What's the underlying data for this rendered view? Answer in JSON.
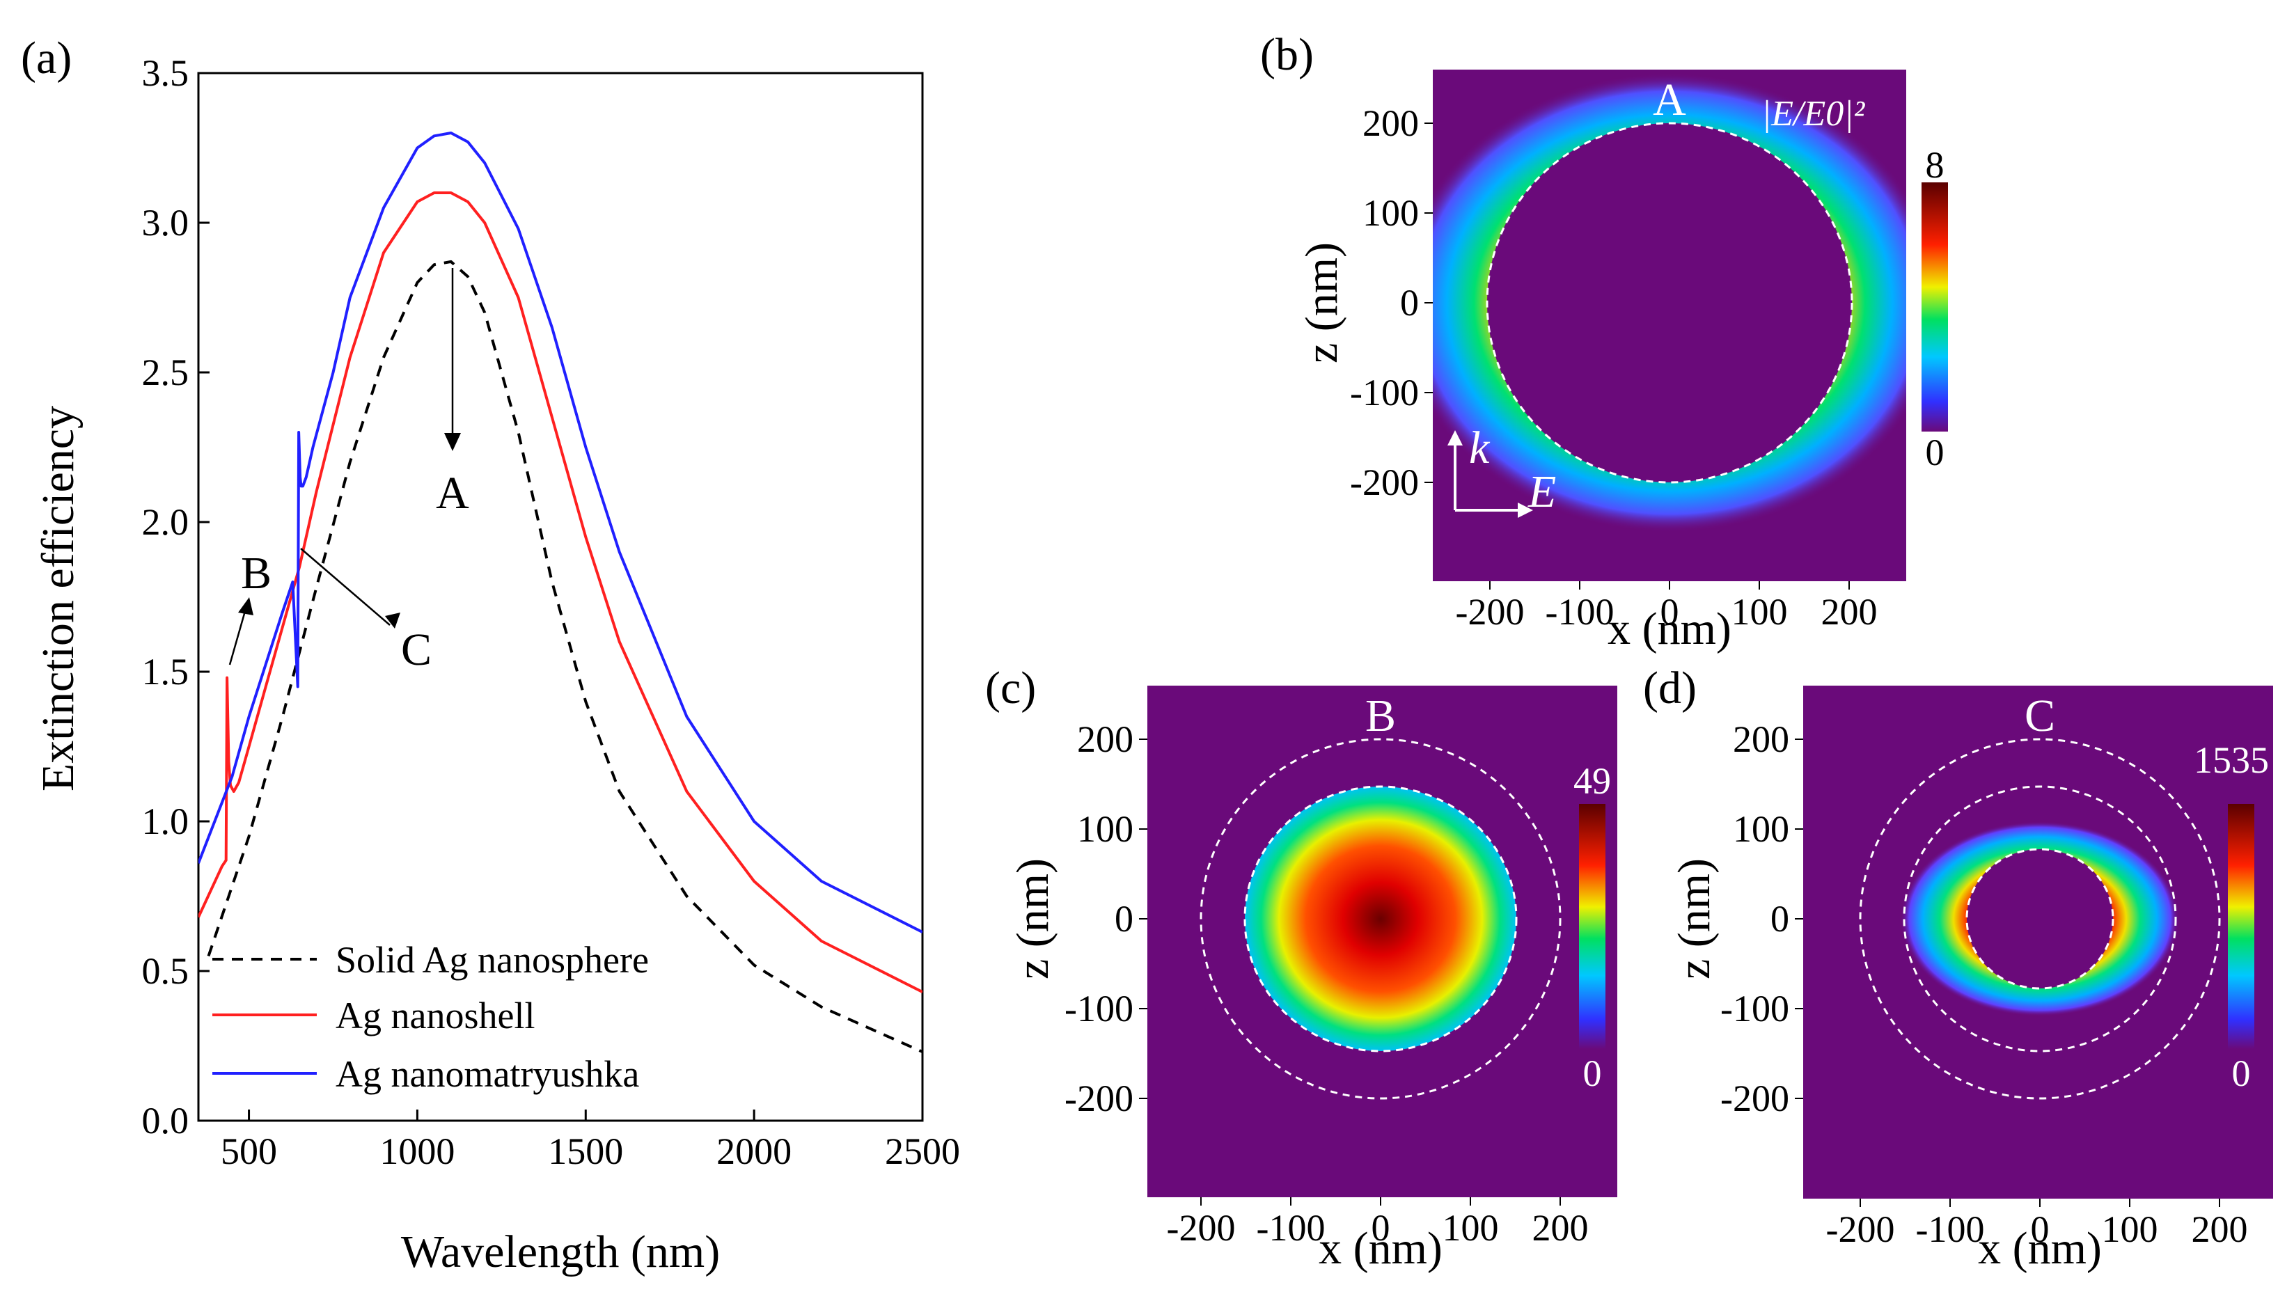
{
  "chart_data": [
    {
      "panel": "(a)",
      "type": "line",
      "xlabel": "Wavelength (nm)",
      "ylabel": "Extinction efficiency",
      "xlim": [
        350,
        2500
      ],
      "ylim": [
        0.0,
        3.5
      ],
      "xticks": [
        "500",
        "1000",
        "1500",
        "2000",
        "2500"
      ],
      "yticks": [
        "0.0",
        "0.5",
        "1.0",
        "1.5",
        "2.0",
        "2.5",
        "3.0",
        "3.5"
      ],
      "legend": "bottom-left",
      "series": [
        {
          "name": "Solid Ag nanosphere",
          "color": "#000000",
          "dash": "dashed",
          "x": [
            380,
            500,
            600,
            700,
            800,
            900,
            1000,
            1050,
            1100,
            1150,
            1200,
            1300,
            1400,
            1500,
            1600,
            1800,
            2000,
            2200,
            2500
          ],
          "y": [
            0.55,
            0.95,
            1.35,
            1.78,
            2.2,
            2.55,
            2.8,
            2.86,
            2.87,
            2.82,
            2.7,
            2.3,
            1.8,
            1.4,
            1.1,
            0.75,
            0.52,
            0.38,
            0.23
          ]
        },
        {
          "name": "Ag nanoshell",
          "color": "#ff2020",
          "dash": "solid",
          "x": [
            350,
            420,
            432,
            435,
            440,
            445,
            455,
            470,
            500,
            550,
            600,
            650,
            700,
            800,
            900,
            1000,
            1050,
            1100,
            1150,
            1200,
            1300,
            1400,
            1500,
            1600,
            1800,
            2000,
            2200,
            2500
          ],
          "y": [
            0.68,
            0.85,
            0.87,
            1.48,
            1.2,
            1.12,
            1.1,
            1.13,
            1.25,
            1.45,
            1.65,
            1.85,
            2.1,
            2.55,
            2.9,
            3.07,
            3.1,
            3.1,
            3.07,
            3.0,
            2.75,
            2.35,
            1.95,
            1.6,
            1.1,
            0.8,
            0.6,
            0.43
          ]
        },
        {
          "name": "Ag nanomatryushka",
          "color": "#2020ff",
          "dash": "solid",
          "x": [
            350,
            450,
            500,
            600,
            630,
            645,
            648,
            652,
            655,
            660,
            670,
            690,
            750,
            800,
            900,
            1000,
            1050,
            1100,
            1150,
            1200,
            1300,
            1400,
            1500,
            1600,
            1800,
            2000,
            2200,
            2500
          ],
          "y": [
            0.86,
            1.15,
            1.35,
            1.7,
            1.8,
            1.45,
            2.3,
            2.15,
            2.12,
            2.12,
            2.15,
            2.25,
            2.5,
            2.75,
            3.05,
            3.25,
            3.29,
            3.3,
            3.27,
            3.2,
            2.98,
            2.65,
            2.25,
            1.9,
            1.35,
            1.0,
            0.8,
            0.63
          ]
        }
      ],
      "annotations": [
        "A",
        "B",
        "C"
      ]
    },
    {
      "panel": "(b)",
      "type": "heatmap",
      "map_label": "A",
      "quantity": "|E/E0|²",
      "colorbar_max": "8",
      "colorbar_min": "0",
      "xlabel": "x (nm)",
      "ylabel": "z (nm)",
      "xticks": [
        "-200",
        "-100",
        "0",
        "100",
        "200"
      ],
      "yticks": [
        "200",
        "100",
        "0",
        "-100",
        "-200"
      ],
      "k_label": "k",
      "e_label": "E"
    },
    {
      "panel": "(c)",
      "type": "heatmap",
      "map_label": "B",
      "colorbar_max": "49",
      "colorbar_min": "0",
      "xlabel": "x (nm)",
      "ylabel": "z (nm)",
      "xticks": [
        "-200",
        "-100",
        "0",
        "100",
        "200"
      ],
      "yticks": [
        "200",
        "100",
        "0",
        "-100",
        "-200"
      ]
    },
    {
      "panel": "(d)",
      "type": "heatmap",
      "map_label": "C",
      "colorbar_max": "1535",
      "colorbar_min": "0",
      "xlabel": "x (nm)",
      "ylabel": "z (nm)",
      "xticks": [
        "-200",
        "-100",
        "0",
        "100",
        "200"
      ],
      "yticks": [
        "200",
        "100",
        "0",
        "-100",
        "-200"
      ]
    }
  ]
}
